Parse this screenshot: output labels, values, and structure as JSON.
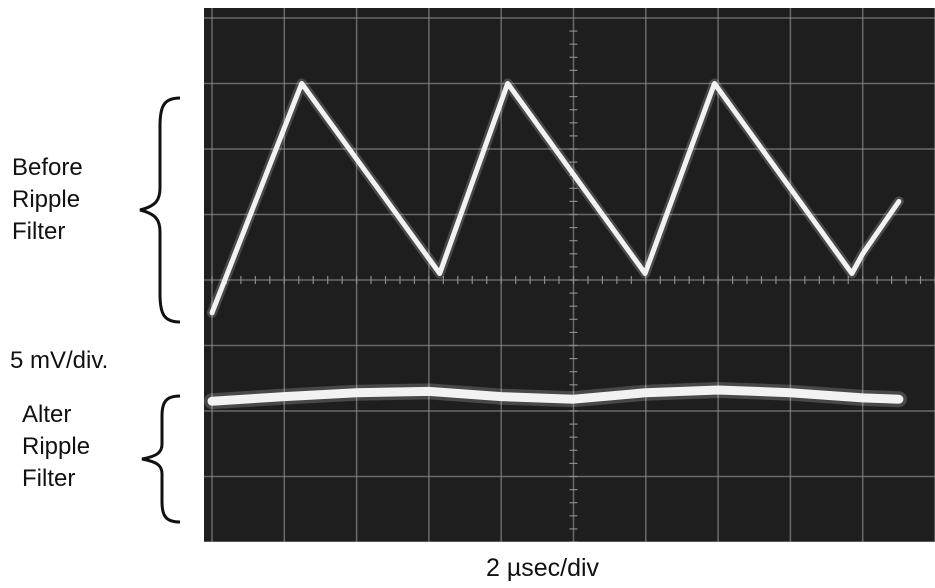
{
  "labels": {
    "before": [
      "Before",
      "Ripple",
      "Filter"
    ],
    "after": [
      "Alter",
      "Ripple",
      "Filter"
    ],
    "volts_per_div": "5  mV/div.",
    "time_per_div": "2 µsec/div"
  },
  "colors": {
    "screen": "#1e1e1e",
    "grid": "#8a8a8a",
    "trace": "#f2f2f2",
    "ink": "#111111"
  },
  "chart_data": {
    "type": "line",
    "title": "",
    "xlabel": "2 µsec/div",
    "ylabel": "5  mV/div.",
    "xlim": [
      0,
      10
    ],
    "ylim": [
      -4,
      4
    ],
    "grid": true,
    "series": [
      {
        "name": "Before Ripple Filter",
        "x": [
          0.0,
          1.24,
          3.15,
          4.09,
          5.99,
          6.95,
          8.85,
          9.0,
          9.5
        ],
        "y": [
          -0.5,
          3.0,
          0.1,
          3.0,
          0.1,
          3.0,
          0.1,
          0.4,
          1.2
        ]
      },
      {
        "name": "Alter Ripple Filter",
        "x": [
          0,
          1,
          2,
          3,
          4,
          5,
          6,
          7,
          8,
          9,
          9.5
        ],
        "y": [
          -1.85,
          -1.78,
          -1.72,
          -1.7,
          -1.78,
          -1.82,
          -1.72,
          -1.68,
          -1.72,
          -1.8,
          -1.82
        ]
      }
    ]
  }
}
